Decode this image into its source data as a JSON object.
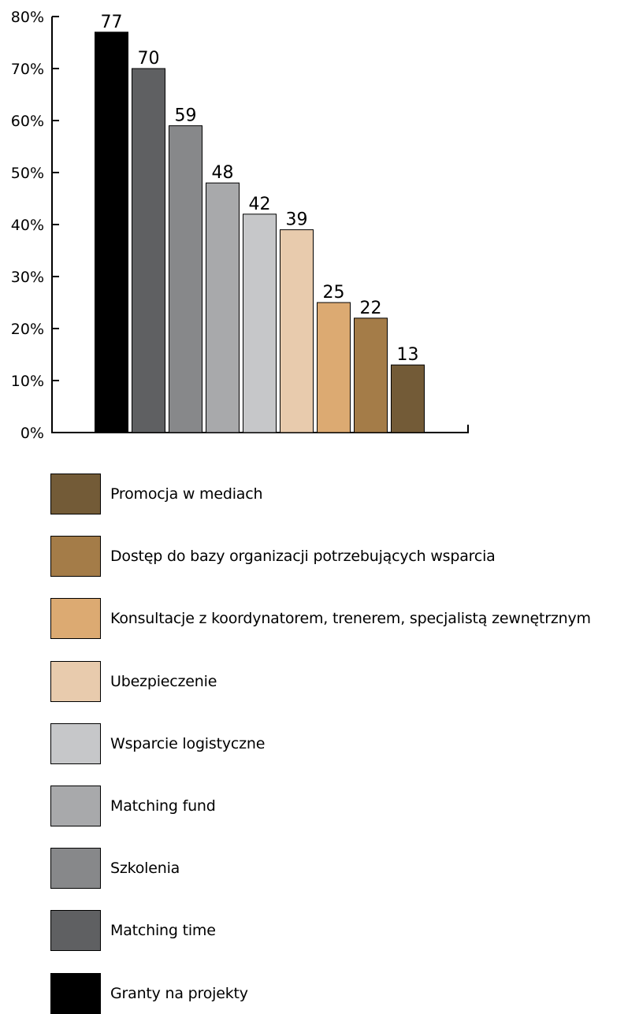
{
  "chart_data": {
    "type": "bar",
    "ylim": [
      0,
      80
    ],
    "yticks": [
      "0%",
      "10%",
      "20%",
      "30%",
      "40%",
      "50%",
      "60%",
      "70%",
      "80%"
    ],
    "categories": [
      "Granty na projekty",
      "Matching time",
      "Szkolenia",
      "Matching fund",
      "Wsparcie logistyczne",
      "Ubezpieczenie",
      "Konsultacje z koordynatorem, trenerem, specjalistą zewnętrznym",
      "Dostęp do bazy organizacji potrzebujących wsparcia",
      "Promocja w mediach"
    ],
    "values": [
      77,
      70,
      59,
      48,
      42,
      39,
      25,
      22,
      13
    ],
    "data_labels": [
      "77",
      "70",
      "59",
      "48",
      "42",
      "39",
      "25",
      "22",
      "13"
    ],
    "colors": [
      "#000000",
      "#5f6062",
      "#87888a",
      "#a8a9ab",
      "#c6c7c9",
      "#e8cbad",
      "#dcaa72",
      "#a47c48",
      "#735b37"
    ],
    "grid": false,
    "legend_placement": "bottom",
    "legend_order": [
      "Promocja w mediach",
      "Dostęp do bazy organizacji potrzebujących wsparcia",
      "Konsultacje z koordynatorem, trenerem, specjalistą zewnętrznym",
      "Ubezpieczenie",
      "Wsparcie logistyczne",
      "Matching fund",
      "Szkolenia",
      "Matching time",
      "Granty na projekty"
    ]
  }
}
